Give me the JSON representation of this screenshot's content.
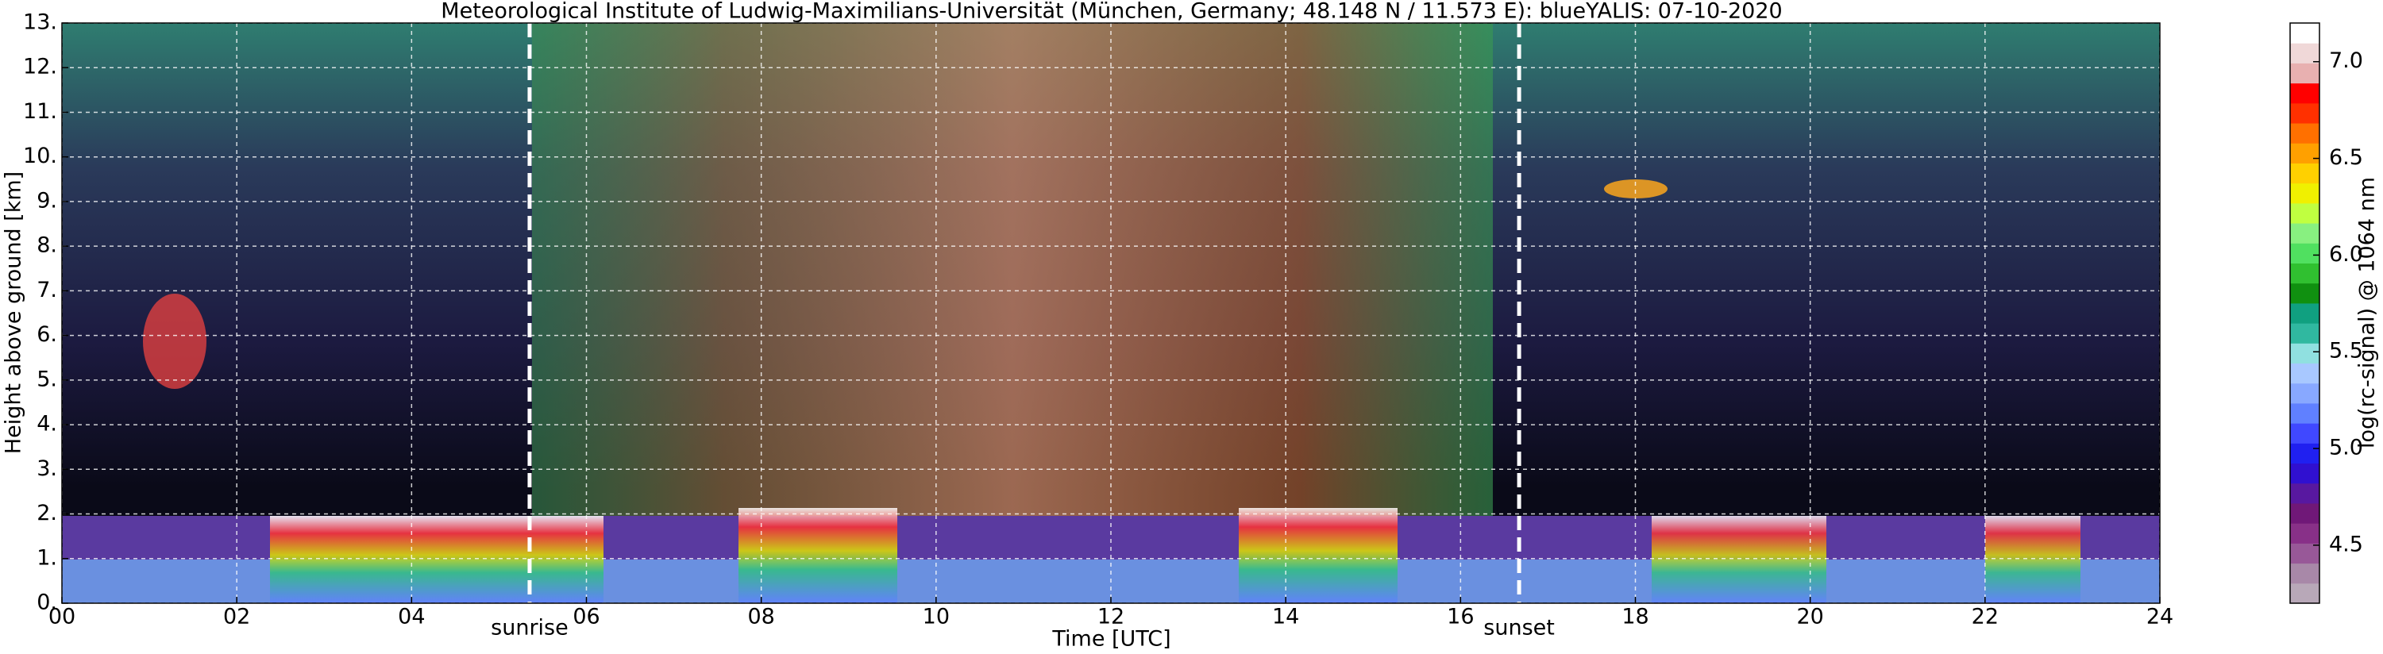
{
  "chart_data": {
    "type": "heatmap",
    "title": "Meteorological Institute of Ludwig-Maximilians-Universität (München, Germany; 48.148 N / 11.573 E):    blueYALIS: 07-10-2020",
    "x_label": "Time [UTC]",
    "y_label": "Height above ground [km]",
    "colorbar_label": "log(rc-signal) @ 1064 nm",
    "xlim": [
      0,
      24
    ],
    "xticks": [
      {
        "value": 0,
        "label": "00"
      },
      {
        "value": 2,
        "label": "02"
      },
      {
        "value": 4,
        "label": "04"
      },
      {
        "value": 6,
        "label": "06"
      },
      {
        "value": 8,
        "label": "08"
      },
      {
        "value": 10,
        "label": "10"
      },
      {
        "value": 12,
        "label": "12"
      },
      {
        "value": 14,
        "label": "14"
      },
      {
        "value": 16,
        "label": "16"
      },
      {
        "value": 18,
        "label": "18"
      },
      {
        "value": 20,
        "label": "20"
      },
      {
        "value": 22,
        "label": "22"
      },
      {
        "value": 24,
        "label": "24"
      }
    ],
    "ylim": [
      0,
      13
    ],
    "yticks": [
      {
        "value": 0,
        "label": "0."
      },
      {
        "value": 1,
        "label": "1."
      },
      {
        "value": 2,
        "label": "2."
      },
      {
        "value": 3,
        "label": "3."
      },
      {
        "value": 4,
        "label": "4."
      },
      {
        "value": 5,
        "label": "5."
      },
      {
        "value": 6,
        "label": "6."
      },
      {
        "value": 7,
        "label": "7."
      },
      {
        "value": 8,
        "label": "8."
      },
      {
        "value": 9,
        "label": "9."
      },
      {
        "value": 10,
        "label": "10."
      },
      {
        "value": 11,
        "label": "11."
      },
      {
        "value": 12,
        "label": "12."
      },
      {
        "value": 13,
        "label": "13."
      }
    ],
    "clim": [
      4.2,
      7.2
    ],
    "cticks": [
      4.5,
      {
        "value": 5,
        "label": "5.0"
      },
      5.5,
      {
        "value": 6,
        "label": "6.0"
      },
      6.5,
      {
        "value": 7,
        "label": "7.0"
      }
    ],
    "colormap": [
      "#b8a8b8",
      "#a888a8",
      "#985898",
      "#883088",
      "#701878",
      "#5818a0",
      "#3010d0",
      "#2020f0",
      "#4048ff",
      "#6080ff",
      "#88a8ff",
      "#a8c8ff",
      "#90e0e0",
      "#30b8a0",
      "#10a080",
      "#109010",
      "#30c030",
      "#50e060",
      "#88f080",
      "#c0ff40",
      "#f0f000",
      "#ffd000",
      "#ffa000",
      "#ff7000",
      "#ff3000",
      "#ff0000",
      "#e8b0b0",
      "#f0d8d8",
      "#ffffff"
    ],
    "grid": true,
    "annotations": [
      {
        "text": "sunrise",
        "x": 5.35
      },
      {
        "text": "sunset",
        "x": 16.67
      }
    ]
  }
}
